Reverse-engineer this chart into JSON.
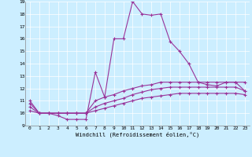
{
  "xlabel": "Windchill (Refroidissement éolien,°C)",
  "bg_color": "#cceeff",
  "line_color": "#993399",
  "xmin": -0.5,
  "xmax": 23.5,
  "ymin": 9,
  "ymax": 19,
  "yticks": [
    9,
    10,
    11,
    12,
    13,
    14,
    15,
    16,
    17,
    18,
    19
  ],
  "xticks": [
    0,
    1,
    2,
    3,
    4,
    5,
    6,
    7,
    8,
    9,
    10,
    11,
    12,
    13,
    14,
    15,
    16,
    17,
    18,
    19,
    20,
    21,
    22,
    23
  ],
  "line1_x": [
    0,
    1,
    2,
    3,
    4,
    5,
    6,
    7,
    8,
    9,
    10,
    11,
    12,
    13,
    14,
    15,
    16,
    17,
    18,
    19,
    20,
    21,
    22,
    23
  ],
  "line1_y": [
    11,
    10,
    10,
    9.8,
    9.5,
    9.5,
    9.5,
    13.3,
    11.3,
    16.0,
    16.0,
    19.0,
    18.0,
    17.9,
    18.0,
    15.8,
    15.0,
    14.0,
    12.5,
    12.3,
    12.2,
    12.5,
    12.5,
    11.8
  ],
  "line2_x": [
    0,
    1,
    2,
    3,
    4,
    5,
    6,
    7,
    8,
    9,
    10,
    11,
    12,
    13,
    14,
    15,
    16,
    17,
    18,
    19,
    20,
    21,
    22,
    23
  ],
  "line2_y": [
    10.8,
    10.0,
    10.0,
    10.0,
    10.0,
    10.0,
    10.0,
    11.0,
    11.3,
    11.5,
    11.8,
    12.0,
    12.2,
    12.3,
    12.5,
    12.5,
    12.5,
    12.5,
    12.5,
    12.5,
    12.5,
    12.5,
    12.5,
    12.5
  ],
  "line3_x": [
    0,
    1,
    2,
    3,
    4,
    5,
    6,
    7,
    8,
    9,
    10,
    11,
    12,
    13,
    14,
    15,
    16,
    17,
    18,
    19,
    20,
    21,
    22,
    23
  ],
  "line3_y": [
    10.5,
    10.0,
    10.0,
    10.0,
    10.0,
    10.0,
    10.0,
    10.5,
    10.8,
    11.0,
    11.2,
    11.5,
    11.7,
    11.9,
    12.0,
    12.1,
    12.1,
    12.1,
    12.1,
    12.1,
    12.1,
    12.1,
    12.1,
    11.8
  ],
  "line4_x": [
    0,
    1,
    2,
    3,
    4,
    5,
    6,
    7,
    8,
    9,
    10,
    11,
    12,
    13,
    14,
    15,
    16,
    17,
    18,
    19,
    20,
    21,
    22,
    23
  ],
  "line4_y": [
    10.2,
    10.0,
    10.0,
    10.0,
    10.0,
    10.0,
    10.0,
    10.2,
    10.4,
    10.6,
    10.8,
    11.0,
    11.2,
    11.3,
    11.4,
    11.5,
    11.6,
    11.6,
    11.6,
    11.6,
    11.6,
    11.6,
    11.6,
    11.5
  ]
}
